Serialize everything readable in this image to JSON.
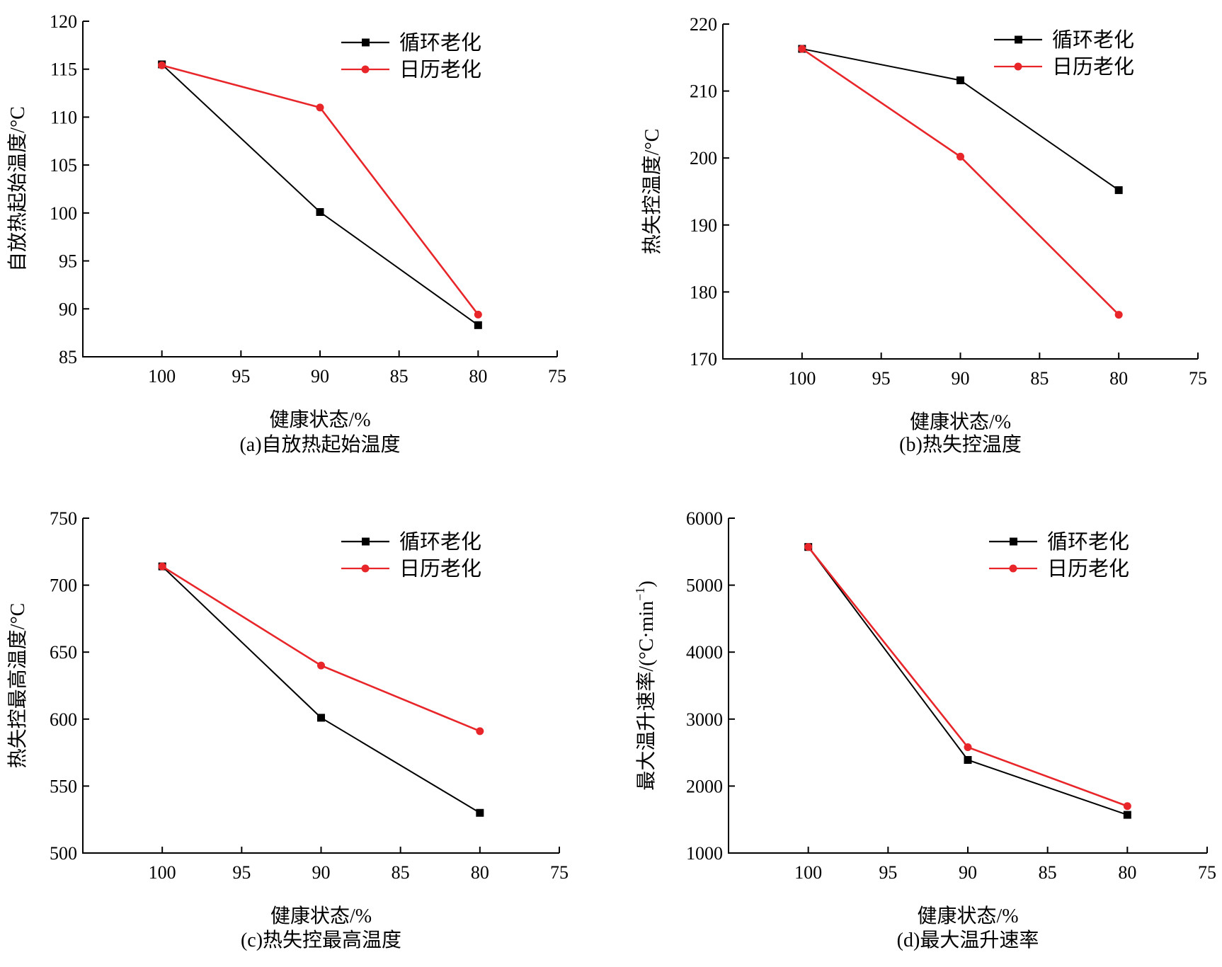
{
  "figure": {
    "colors": {
      "cycle": "#000000",
      "calendar": "#e8262a",
      "axis": "#000000"
    },
    "markers": {
      "cycle": "square",
      "calendar": "circle"
    }
  },
  "chart_data": [
    {
      "type": "line",
      "caption": "(a)自放热起始温度",
      "xlabel": "健康状态/%",
      "ylabel": "自放热起始温度/°C",
      "xlim": [
        105,
        75
      ],
      "x_reversed": true,
      "xticks": [
        100,
        95,
        90,
        85,
        80,
        75
      ],
      "ylim": [
        85,
        120
      ],
      "yticks": [
        85,
        90,
        95,
        100,
        105,
        110,
        115,
        120
      ],
      "x": [
        100,
        90,
        80
      ],
      "series": [
        {
          "name": "循环老化",
          "values": [
            115.5,
            100.1,
            88.3
          ]
        },
        {
          "name": "日历老化",
          "values": [
            115.4,
            111.0,
            89.4
          ]
        }
      ],
      "legend": "top-right",
      "grid": false
    },
    {
      "type": "line",
      "caption": "(b)热失控温度",
      "xlabel": "健康状态/%",
      "ylabel": "热失控温度/°C",
      "xlim": [
        105,
        75
      ],
      "x_reversed": true,
      "xticks": [
        100,
        95,
        90,
        85,
        80,
        75
      ],
      "ylim": [
        170,
        220
      ],
      "yticks": [
        170,
        180,
        190,
        200,
        210,
        220
      ],
      "x": [
        100,
        90,
        80
      ],
      "series": [
        {
          "name": "循环老化",
          "values": [
            216.3,
            211.6,
            195.2
          ]
        },
        {
          "name": "日历老化",
          "values": [
            216.3,
            200.2,
            176.6
          ]
        }
      ],
      "legend": "top-right",
      "grid": false
    },
    {
      "type": "line",
      "caption": "(c)热失控最高温度",
      "xlabel": "健康状态/%",
      "ylabel": "热失控最高温度/°C",
      "xlim": [
        105,
        75
      ],
      "x_reversed": true,
      "xticks": [
        100,
        95,
        90,
        85,
        80,
        75
      ],
      "ylim": [
        500,
        750
      ],
      "yticks": [
        500,
        550,
        600,
        650,
        700,
        750
      ],
      "x": [
        100,
        90,
        80
      ],
      "series": [
        {
          "name": "循环老化",
          "values": [
            714,
            601,
            530
          ]
        },
        {
          "name": "日历老化",
          "values": [
            714,
            640,
            591
          ]
        }
      ],
      "legend": "top-right",
      "grid": false
    },
    {
      "type": "line",
      "caption": "(d)最大温升速率",
      "xlabel": "健康状态/%",
      "ylabel": "最大温升速率/(°C·min",
      "ylabel_sup": "−1",
      "ylabel_tail": ")",
      "xlim": [
        105,
        75
      ],
      "x_reversed": true,
      "xticks": [
        100,
        95,
        90,
        85,
        80,
        75
      ],
      "ylim": [
        1000,
        6000
      ],
      "yticks": [
        1000,
        2000,
        3000,
        4000,
        5000,
        6000
      ],
      "x": [
        100,
        90,
        80
      ],
      "series": [
        {
          "name": "循环老化",
          "values": [
            5570,
            2390,
            1570
          ]
        },
        {
          "name": "日历老化",
          "values": [
            5570,
            2580,
            1700
          ]
        }
      ],
      "legend": "top-right",
      "grid": false
    }
  ]
}
